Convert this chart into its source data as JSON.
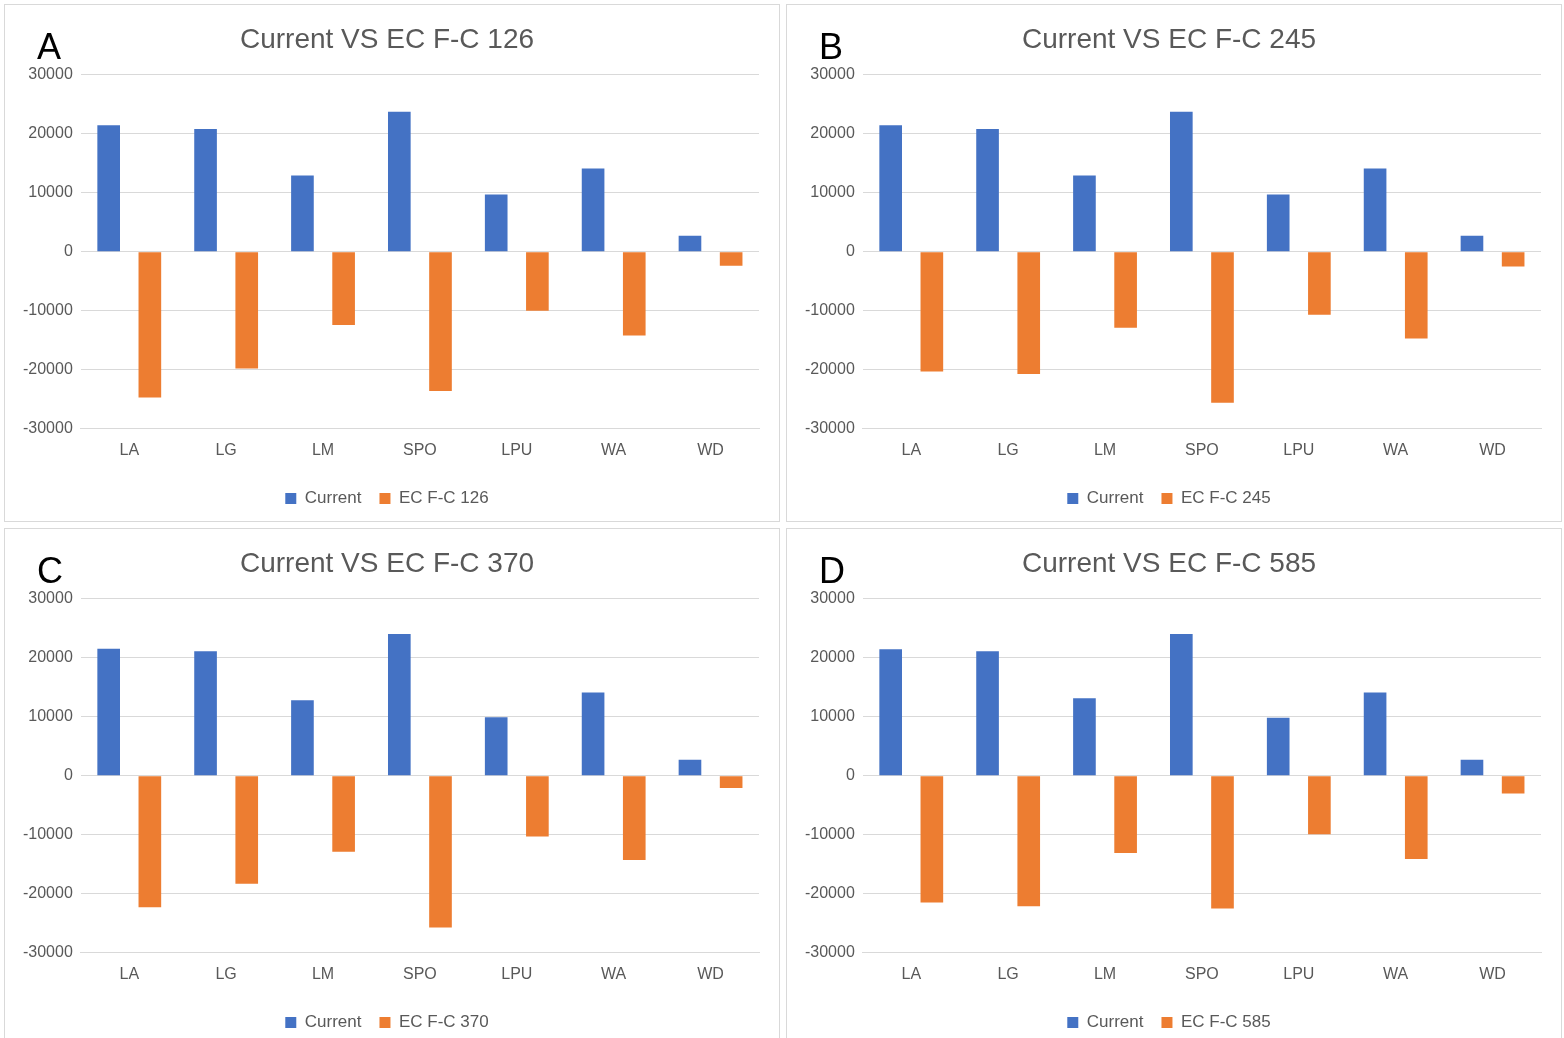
{
  "chart_data": [
    {
      "type": "bar",
      "title": "Current VS EC F-C 126",
      "annotations": [
        "A"
      ],
      "categories": [
        "LA",
        "LG",
        "LM",
        "SPO",
        "LPU",
        "WA",
        "WD"
      ],
      "series": [
        {
          "name": "Current",
          "color": "#4472c4",
          "values": [
            21400,
            20800,
            12900,
            23700,
            9700,
            14100,
            2700
          ]
        },
        {
          "name": "EC F-C 126",
          "color": "#ed7d31",
          "values": [
            -24700,
            -19800,
            -12400,
            -23600,
            -10000,
            -14200,
            -2400
          ]
        }
      ],
      "ylim": [
        -30000,
        30000
      ],
      "yticks": [
        -30000,
        -20000,
        -10000,
        0,
        10000,
        20000,
        30000
      ],
      "grid": "y",
      "legend": "bottom"
    },
    {
      "type": "bar",
      "title": "Current VS EC F-C 245",
      "annotations": [
        "B"
      ],
      "categories": [
        "LA",
        "LG",
        "LM",
        "SPO",
        "LPU",
        "WA",
        "WD"
      ],
      "series": [
        {
          "name": "Current",
          "color": "#4472c4",
          "values": [
            21400,
            20800,
            12900,
            23700,
            9700,
            14100,
            2700
          ]
        },
        {
          "name": "EC F-C 245",
          "color": "#ed7d31",
          "values": [
            -20300,
            -20700,
            -12900,
            -25600,
            -10700,
            -14700,
            -2500
          ]
        }
      ],
      "ylim": [
        -30000,
        30000
      ],
      "yticks": [
        -30000,
        -20000,
        -10000,
        0,
        10000,
        20000,
        30000
      ],
      "grid": "y",
      "legend": "bottom"
    },
    {
      "type": "bar",
      "title": "Current VS EC F-C 370",
      "annotations": [
        "C"
      ],
      "categories": [
        "LA",
        "LG",
        "LM",
        "SPO",
        "LPU",
        "WA",
        "WD"
      ],
      "series": [
        {
          "name": "Current",
          "color": "#4472c4",
          "values": [
            21500,
            21100,
            12800,
            24000,
            9900,
            14100,
            2700
          ]
        },
        {
          "name": "EC F-C 370",
          "color": "#ed7d31",
          "values": [
            -22300,
            -18300,
            -12900,
            -25700,
            -10300,
            -14300,
            -2100
          ]
        }
      ],
      "ylim": [
        -30000,
        30000
      ],
      "yticks": [
        -30000,
        -20000,
        -10000,
        0,
        10000,
        20000,
        30000
      ],
      "grid": "y",
      "legend": "bottom"
    },
    {
      "type": "bar",
      "title": "Current VS EC F-C 585",
      "annotations": [
        "D"
      ],
      "categories": [
        "LA",
        "LG",
        "LM",
        "SPO",
        "LPU",
        "WA",
        "WD"
      ],
      "series": [
        {
          "name": "Current",
          "color": "#4472c4",
          "values": [
            21400,
            21100,
            13100,
            24000,
            9800,
            14100,
            2700
          ]
        },
        {
          "name": "EC F-C 585",
          "color": "#ed7d31",
          "values": [
            -21500,
            -22100,
            -13100,
            -22500,
            -9900,
            -14100,
            -3000
          ]
        }
      ],
      "ylim": [
        -30000,
        30000
      ],
      "yticks": [
        -30000,
        -20000,
        -10000,
        0,
        10000,
        20000,
        30000
      ],
      "grid": "y",
      "legend": "bottom"
    }
  ]
}
